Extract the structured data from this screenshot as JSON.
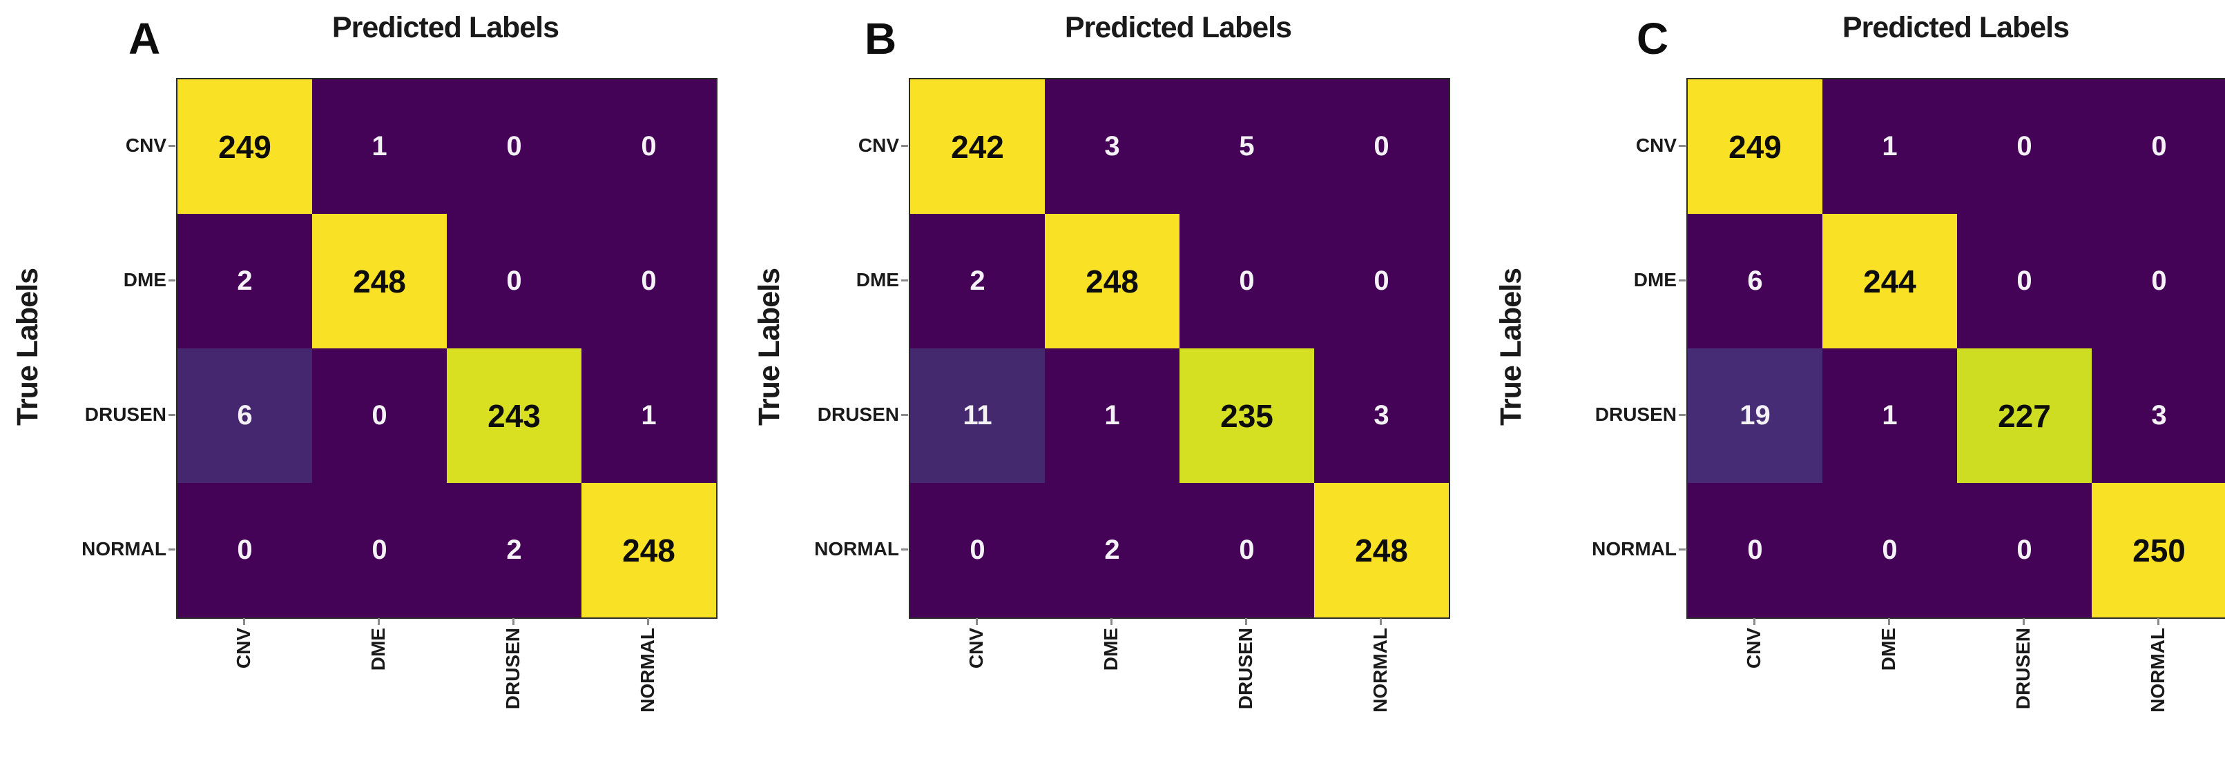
{
  "figure": {
    "x_axis_title": "Predicted Labels",
    "y_axis_title": "True Labels",
    "class_labels": [
      "CNV",
      "DME",
      "DRUSEN",
      "NORMAL"
    ],
    "colors": {
      "background": "#ffffff",
      "cell_low_purple": "#440356",
      "cell_mid_purple": "#45296f",
      "cell_yellow_green": "#d4e021",
      "cell_bright_yellow": "#f9e125",
      "diagonal_text": "#0d0d0d",
      "offdiagonal_text": "#f5f2f7"
    }
  },
  "chart_data": [
    {
      "type": "heatmap",
      "panel": "A",
      "title": "Predicted Labels",
      "ylabel": "True Labels",
      "row_labels": [
        "CNV",
        "DME",
        "DRUSEN",
        "NORMAL"
      ],
      "col_labels": [
        "CNV",
        "DME",
        "DRUSEN",
        "NORMAL"
      ],
      "values": [
        [
          249,
          1,
          0,
          0
        ],
        [
          2,
          248,
          0,
          0
        ],
        [
          6,
          0,
          243,
          1
        ],
        [
          0,
          0,
          2,
          248
        ]
      ],
      "cell_colors": [
        [
          "#f9e125",
          "#440356",
          "#440356",
          "#440356"
        ],
        [
          "#440356",
          "#f9e125",
          "#440356",
          "#440356"
        ],
        [
          "#44276e",
          "#440356",
          "#d8e021",
          "#440356"
        ],
        [
          "#440356",
          "#440356",
          "#440356",
          "#f9e125"
        ]
      ]
    },
    {
      "type": "heatmap",
      "panel": "B",
      "title": "Predicted Labels",
      "ylabel": "True Labels",
      "row_labels": [
        "CNV",
        "DME",
        "DRUSEN",
        "NORMAL"
      ],
      "col_labels": [
        "CNV",
        "DME",
        "DRUSEN",
        "NORMAL"
      ],
      "values": [
        [
          242,
          3,
          5,
          0
        ],
        [
          2,
          248,
          0,
          0
        ],
        [
          11,
          1,
          235,
          3
        ],
        [
          0,
          2,
          0,
          248
        ]
      ],
      "cell_colors": [
        [
          "#f9e125",
          "#440356",
          "#440356",
          "#440356"
        ],
        [
          "#440356",
          "#f9e125",
          "#440356",
          "#440356"
        ],
        [
          "#45296f",
          "#440356",
          "#d4e021",
          "#440356"
        ],
        [
          "#440356",
          "#440356",
          "#440356",
          "#f9e125"
        ]
      ]
    },
    {
      "type": "heatmap",
      "panel": "C",
      "title": "Predicted Labels",
      "ylabel": "True Labels",
      "row_labels": [
        "CNV",
        "DME",
        "DRUSEN",
        "NORMAL"
      ],
      "col_labels": [
        "CNV",
        "DME",
        "DRUSEN",
        "NORMAL"
      ],
      "values": [
        [
          249,
          1,
          0,
          0
        ],
        [
          6,
          244,
          0,
          0
        ],
        [
          19,
          1,
          227,
          3
        ],
        [
          0,
          0,
          0,
          250
        ]
      ],
      "cell_colors": [
        [
          "#f9e125",
          "#440356",
          "#440356",
          "#440356"
        ],
        [
          "#440356",
          "#f9e125",
          "#440356",
          "#440356"
        ],
        [
          "#462c74",
          "#440356",
          "#cedd21",
          "#440356"
        ],
        [
          "#440356",
          "#440356",
          "#440356",
          "#f9e125"
        ]
      ]
    }
  ]
}
